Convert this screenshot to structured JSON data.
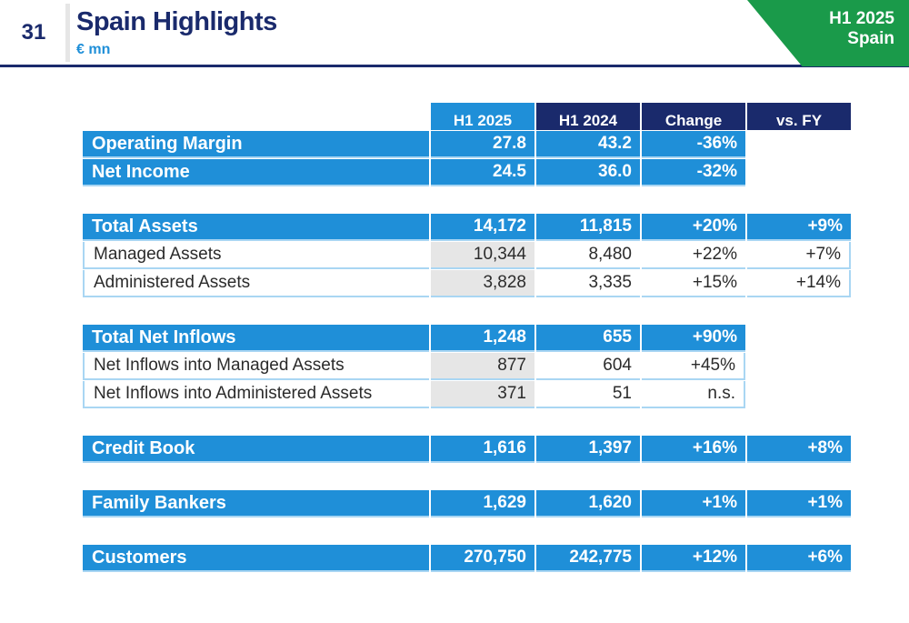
{
  "page": {
    "number": "31",
    "title": "Spain Highlights",
    "subtitle": "€ mn",
    "badge_line1": "H1 2025",
    "badge_line2": "Spain"
  },
  "colors": {
    "navy": "#1a2a6c",
    "blue": "#1f8fd8",
    "green": "#1a9a4a",
    "light_border": "#a9d6f3",
    "shade": "#e6e6e6"
  },
  "table": {
    "headers": [
      "H1 2025",
      "H1 2024",
      "Change",
      "vs. FY"
    ],
    "groups": [
      {
        "rows": [
          {
            "label": "Operating Margin",
            "h1_2025": "27.8",
            "h1_2024": "43.2",
            "change": "-36%"
          },
          {
            "label": "Net Income",
            "h1_2025": "24.5",
            "h1_2024": "36.0",
            "change": "-32%"
          }
        ]
      },
      {
        "rows": [
          {
            "label": "Total Assets",
            "h1_2025": "14,172",
            "h1_2024": "11,815",
            "change": "+20%",
            "vs_fy": "+9%"
          },
          {
            "label": "Managed Assets",
            "h1_2025": "10,344",
            "h1_2024": "8,480",
            "change": "+22%",
            "vs_fy": "+7%"
          },
          {
            "label": "Administered Assets",
            "h1_2025": "3,828",
            "h1_2024": "3,335",
            "change": "+15%",
            "vs_fy": "+14%"
          }
        ]
      },
      {
        "rows": [
          {
            "label": "Total Net Inflows",
            "h1_2025": "1,248",
            "h1_2024": "655",
            "change": "+90%"
          },
          {
            "label": "Net Inflows into Managed Assets",
            "h1_2025": "877",
            "h1_2024": "604",
            "change": "+45%"
          },
          {
            "label": "Net Inflows into Administered Assets",
            "h1_2025": "371",
            "h1_2024": "51",
            "change": "n.s."
          }
        ]
      },
      {
        "rows": [
          {
            "label": "Credit Book",
            "h1_2025": "1,616",
            "h1_2024": "1,397",
            "change": "+16%",
            "vs_fy": "+8%"
          }
        ]
      },
      {
        "rows": [
          {
            "label": "Family Bankers",
            "h1_2025": "1,629",
            "h1_2024": "1,620",
            "change": "+1%",
            "vs_fy": "+1%"
          }
        ]
      },
      {
        "rows": [
          {
            "label": "Customers",
            "h1_2025": "270,750",
            "h1_2024": "242,775",
            "change": "+12%",
            "vs_fy": "+6%"
          }
        ]
      }
    ]
  }
}
